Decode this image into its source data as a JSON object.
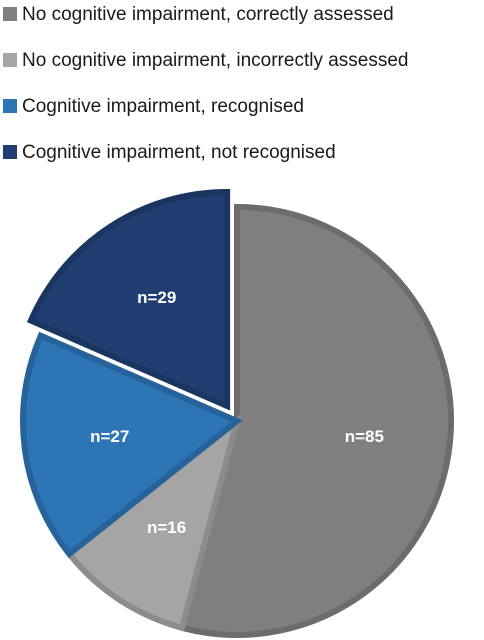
{
  "chart_data": {
    "type": "pie",
    "categories": [
      "No cognitive impairment, correctly assessed",
      "No cognitive impairment, incorrectly assessed",
      "Cognitive impairment, recognised",
      "Cognitive impairment, not recognised"
    ],
    "values": [
      85,
      16,
      27,
      29
    ],
    "value_labels": [
      "n=85",
      "n=16",
      "n=27",
      "n=29"
    ],
    "colors": [
      "#7f7f7f",
      "#a5a5a5",
      "#2e75b6",
      "#203e72"
    ],
    "explode": [
      false,
      false,
      false,
      true
    ],
    "legend": "top-left"
  }
}
